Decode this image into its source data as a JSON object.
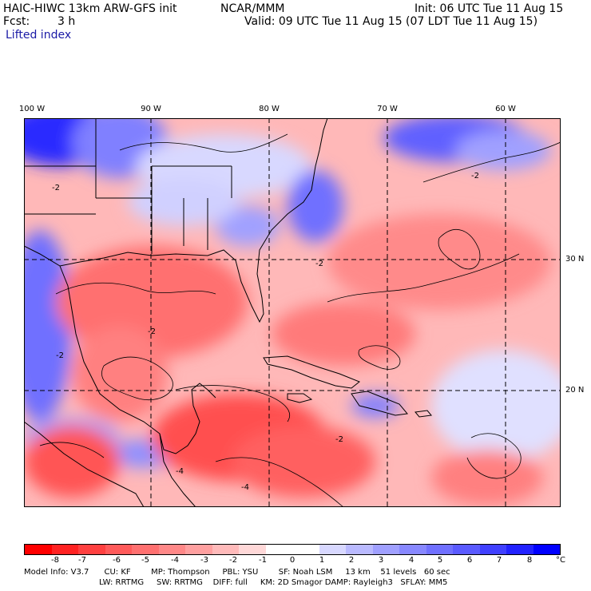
{
  "header": {
    "title": "HAIC-HIWC 13km ARW-GFS init",
    "org": "NCAR/MMM",
    "init": "Init: 06 UTC Tue 11 Aug 15",
    "fcst_label": "Fcst:",
    "fcst_value": "3 h",
    "valid": "Valid: 09 UTC Tue 11 Aug 15 (07 LDT Tue 11 Aug 15)",
    "field": "Lifted index"
  },
  "map": {
    "lon_labels": [
      "100 W",
      "90 W",
      "80 W",
      "70 W",
      "60 W"
    ],
    "lat_labels": [
      "30 N",
      "20 N"
    ],
    "contour_labels": [
      "-2",
      "-2",
      "-2",
      "-2",
      "-2",
      "-4",
      "-4",
      "-4",
      "-2"
    ]
  },
  "colorbar": {
    "labels": [
      "-8",
      "-7",
      "-6",
      "-5",
      "-4",
      "-3",
      "-2",
      "-1",
      "0",
      "1",
      "2",
      "3",
      "4",
      "5",
      "6",
      "7",
      "8"
    ],
    "unit": "°C",
    "colors": [
      "#ff0000",
      "#ff2222",
      "#ff4040",
      "#ff5a5a",
      "#ff7070",
      "#ff8888",
      "#ffa0a0",
      "#ffbaba",
      "#ffd8d8",
      "#ffffff",
      "#ffffff",
      "#d8d8ff",
      "#babaff",
      "#a0a0ff",
      "#8888ff",
      "#7070ff",
      "#5a5aff",
      "#4040ff",
      "#2222ff",
      "#0000ff"
    ]
  },
  "info": {
    "line1": "Model Info: V3.7      CU: KF        MP: Thompson     PBL: YSU        SF: Noah LSM     13 km    51 levels   60 sec",
    "line2": "LW: RRTMG     SW: RRTMG    DIFF: full     KM: 2D Smagor DAMP: Rayleigh3   SFLAY: MM5"
  }
}
